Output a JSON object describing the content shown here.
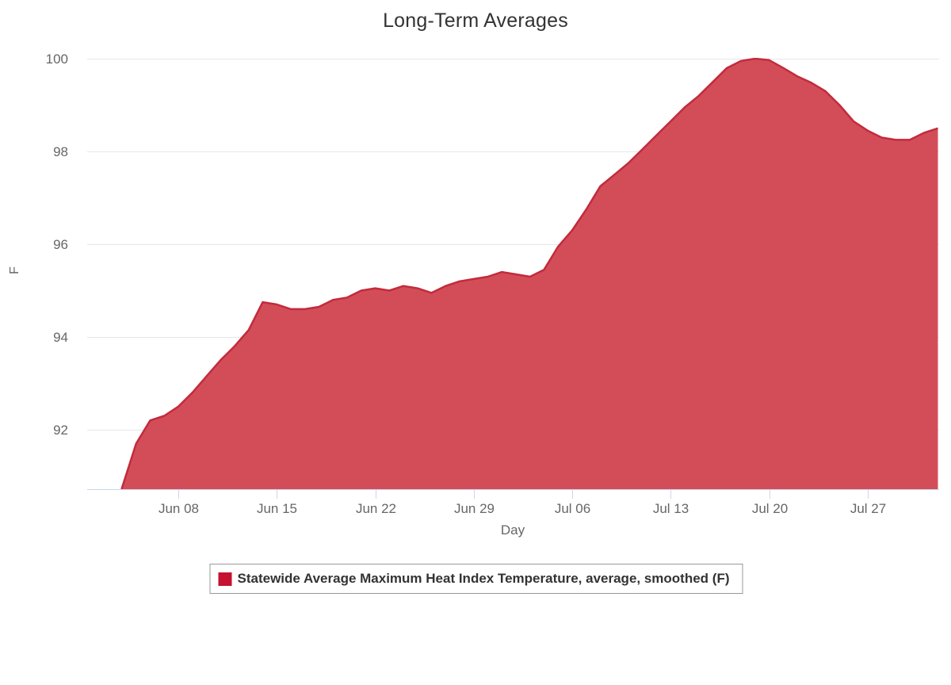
{
  "chart_data": {
    "type": "area",
    "title": "Long-Term Averages",
    "xlabel": "Day",
    "ylabel": "F",
    "grid": "horizontal-only",
    "legend_position": "bottom-center",
    "ylim": [
      90.7,
      100
    ],
    "y_ticks": [
      {
        "value": 92,
        "label": "92"
      },
      {
        "value": 94,
        "label": "94"
      },
      {
        "value": 96,
        "label": "96"
      },
      {
        "value": 98,
        "label": "98"
      },
      {
        "value": 100,
        "label": "100"
      }
    ],
    "x_tick_labels": [
      "Jun 08",
      "Jun 15",
      "Jun 22",
      "Jun 29",
      "Jul 06",
      "Jul 13",
      "Jul 20",
      "Jul 27"
    ],
    "series": [
      {
        "name": "Statewide Average Maximum Heat Index Temperature, average, smoothed (F)",
        "dates": [
          "Jun 03",
          "Jun 04",
          "Jun 05",
          "Jun 06",
          "Jun 07",
          "Jun 08",
          "Jun 09",
          "Jun 10",
          "Jun 11",
          "Jun 12",
          "Jun 13",
          "Jun 14",
          "Jun 15",
          "Jun 16",
          "Jun 17",
          "Jun 18",
          "Jun 19",
          "Jun 20",
          "Jun 21",
          "Jun 22",
          "Jun 23",
          "Jun 24",
          "Jun 25",
          "Jun 26",
          "Jun 27",
          "Jun 28",
          "Jun 29",
          "Jun 30",
          "Jul 01",
          "Jul 02",
          "Jul 03",
          "Jul 04",
          "Jul 05",
          "Jul 06",
          "Jul 07",
          "Jul 08",
          "Jul 09",
          "Jul 10",
          "Jul 11",
          "Jul 12",
          "Jul 13",
          "Jul 14",
          "Jul 15",
          "Jul 16",
          "Jul 17",
          "Jul 18",
          "Jul 19",
          "Jul 20",
          "Jul 21",
          "Jul 22",
          "Jul 23",
          "Jul 24",
          "Jul 25",
          "Jul 26",
          "Jul 27",
          "Jul 28",
          "Jul 29",
          "Jul 30",
          "Jul 31",
          "Aug 01"
        ],
        "values": [
          89.3,
          90.75,
          91.7,
          92.2,
          92.3,
          92.5,
          92.8,
          93.15,
          93.5,
          93.8,
          94.15,
          94.75,
          94.7,
          94.6,
          94.6,
          94.65,
          94.8,
          94.85,
          95.0,
          95.05,
          95.0,
          95.1,
          95.05,
          94.95,
          95.1,
          95.2,
          95.25,
          95.3,
          95.4,
          95.35,
          95.3,
          95.45,
          95.95,
          96.3,
          96.75,
          97.25,
          97.5,
          97.75,
          98.05,
          98.35,
          98.65,
          98.95,
          99.2,
          99.5,
          99.8,
          99.95,
          100.0,
          99.97,
          99.8,
          99.62,
          99.48,
          99.3,
          99.0,
          98.65,
          98.45,
          98.3,
          98.25,
          98.25,
          98.4,
          98.5
        ]
      }
    ],
    "colors": {
      "area_fill": "#D34D58",
      "line": "#C22B3C",
      "legend_swatch": "#C41230",
      "gridline": "#E6E6E6",
      "axis_line": "#CCD6EB",
      "tick_label": "#666666",
      "title_text": "#333333",
      "legend_border": "#999999",
      "background": "#FFFFFF"
    }
  }
}
